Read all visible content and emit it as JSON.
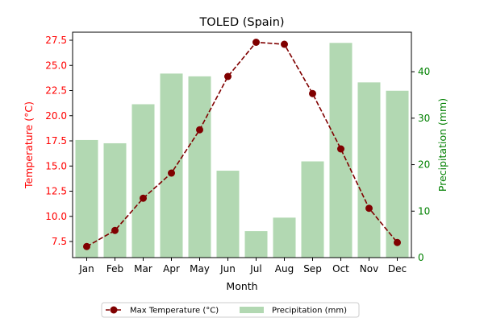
{
  "chart_data": {
    "type": "bar+line",
    "title": "TOLED (Spain)",
    "xlabel": "Month",
    "categories": [
      "Jan",
      "Feb",
      "Mar",
      "Apr",
      "May",
      "Jun",
      "Jul",
      "Aug",
      "Sep",
      "Oct",
      "Nov",
      "Dec"
    ],
    "temperature": {
      "name": "Max Temperature (°C)",
      "axis_label": "Temperature (°C)",
      "values": [
        7.0,
        8.6,
        11.8,
        14.3,
        18.6,
        23.9,
        27.3,
        27.1,
        22.2,
        16.7,
        10.8,
        7.4
      ],
      "ylim": [
        5.9,
        28.3
      ],
      "ticks": [
        "7.5",
        "10.0",
        "12.5",
        "15.0",
        "17.5",
        "20.0",
        "22.5",
        "25.0",
        "27.5"
      ],
      "color": "#800000",
      "axis_color": "#ff0000"
    },
    "precipitation": {
      "name": "Precipitation (mm)",
      "axis_label": "Precipitation (mm)",
      "values": [
        25.3,
        24.6,
        33.0,
        39.6,
        39.0,
        18.7,
        5.7,
        8.6,
        20.7,
        46.2,
        37.7,
        35.9
      ],
      "ylim": [
        0,
        48.5
      ],
      "ticks": [
        "0",
        "10",
        "20",
        "30",
        "40"
      ],
      "color": "#b2d8b2",
      "axis_color": "#008000"
    },
    "legend_position": "bottom-center"
  }
}
